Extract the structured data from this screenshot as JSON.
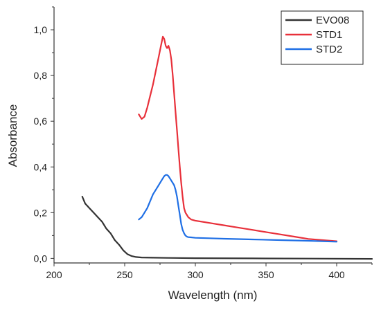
{
  "chart_data": {
    "type": "line",
    "title": "",
    "xlabel": "Wavelength (nm)",
    "ylabel": "Absorbance",
    "xlim": [
      200,
      425
    ],
    "ylim": [
      -0.02,
      1.1
    ],
    "x_ticks": [
      200,
      250,
      300,
      350,
      400
    ],
    "y_ticks": [
      0.0,
      0.2,
      0.4,
      0.6,
      0.8,
      1.0
    ],
    "x_tick_labels": [
      "200",
      "250",
      "300",
      "350",
      "400"
    ],
    "y_tick_labels": [
      "0,0",
      "0,2",
      "0,4",
      "0,6",
      "0,8",
      "1,0"
    ],
    "grid": false,
    "legend_position": "top-right",
    "series": [
      {
        "name": "EVO08",
        "color": "#333333",
        "x": [
          220,
          222,
          225,
          228,
          231,
          234,
          237,
          240,
          243,
          246,
          249,
          252,
          255,
          258,
          262,
          270,
          280,
          300,
          340,
          380,
          425
        ],
        "y": [
          0.27,
          0.24,
          0.22,
          0.2,
          0.18,
          0.16,
          0.13,
          0.11,
          0.08,
          0.06,
          0.035,
          0.018,
          0.01,
          0.006,
          0.004,
          0.003,
          0.002,
          0.001,
          0.0,
          -0.001,
          -0.002
        ]
      },
      {
        "name": "STD1",
        "color": "#e8303a",
        "x": [
          260,
          262,
          264,
          266,
          268,
          270,
          272,
          274,
          276,
          277,
          278,
          279,
          280,
          281,
          282,
          283,
          284,
          285,
          286,
          287,
          288,
          289,
          290,
          291,
          292,
          293,
          294,
          295,
          297,
          300,
          305,
          310,
          320,
          330,
          340,
          350,
          360,
          370,
          380,
          390,
          400
        ],
        "y": [
          0.63,
          0.61,
          0.62,
          0.66,
          0.71,
          0.76,
          0.82,
          0.88,
          0.94,
          0.97,
          0.96,
          0.93,
          0.92,
          0.93,
          0.91,
          0.87,
          0.8,
          0.72,
          0.64,
          0.56,
          0.48,
          0.4,
          0.33,
          0.27,
          0.22,
          0.2,
          0.19,
          0.18,
          0.17,
          0.165,
          0.16,
          0.155,
          0.145,
          0.135,
          0.125,
          0.115,
          0.105,
          0.095,
          0.085,
          0.08,
          0.075
        ]
      },
      {
        "name": "STD2",
        "color": "#1f6fe5",
        "x": [
          260,
          262,
          264,
          266,
          268,
          270,
          272,
          274,
          276,
          278,
          279,
          280,
          281,
          282,
          283,
          284,
          285,
          286,
          287,
          288,
          289,
          290,
          291,
          292,
          293,
          294,
          295,
          297,
          300,
          310,
          320,
          340,
          360,
          380,
          400
        ],
        "y": [
          0.17,
          0.18,
          0.2,
          0.22,
          0.25,
          0.28,
          0.3,
          0.32,
          0.34,
          0.36,
          0.365,
          0.365,
          0.36,
          0.35,
          0.34,
          0.33,
          0.32,
          0.3,
          0.27,
          0.23,
          0.19,
          0.15,
          0.125,
          0.11,
          0.1,
          0.095,
          0.093,
          0.092,
          0.09,
          0.088,
          0.086,
          0.083,
          0.08,
          0.077,
          0.073
        ]
      }
    ]
  }
}
